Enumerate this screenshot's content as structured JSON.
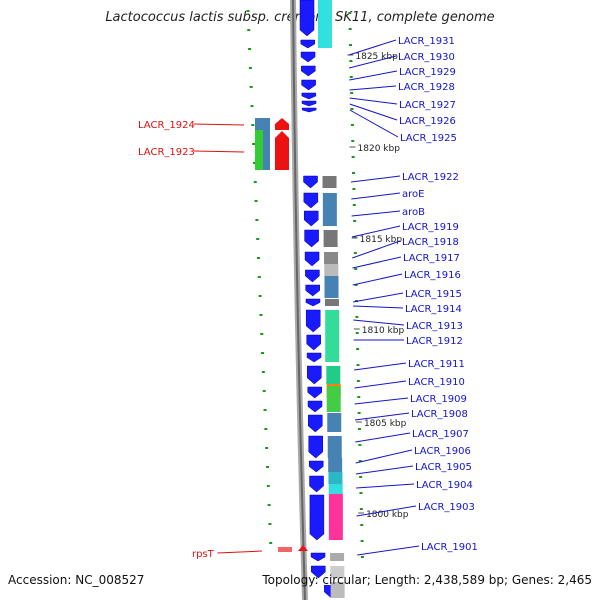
{
  "title": "Lactococcus lactis subsp. cremoris SK11, complete genome",
  "footer": {
    "accession": "Accession: NC_008527",
    "topology": "Topology: circular; Length: 2,438,589 bp; Genes: 2,465"
  },
  "colors": {
    "right_gene_label": "#1414cc",
    "left_gene_label": "#dd1111",
    "forward_arrow": "#1a1aff",
    "reverse_arrow": "#ee1111",
    "tick": "#1a9a1a",
    "backbone": "#888888"
  },
  "coordinate_labels": [
    "1825 kbp",
    "1820 kbp",
    "1815 kbp",
    "1810 kbp",
    "1805 kbp",
    "1800 kbp"
  ],
  "right_labels": [
    "LACR_1931",
    "LACR_1930",
    "LACR_1929",
    "LACR_1928",
    "LACR_1927",
    "LACR_1926",
    "LACR_1925",
    "LACR_1922",
    "aroE",
    "aroB",
    "LACR_1919",
    "LACR_1918",
    "LACR_1917",
    "LACR_1916",
    "LACR_1915",
    "LACR_1914",
    "LACR_1913",
    "LACR_1912",
    "LACR_1911",
    "LACR_1910",
    "LACR_1909",
    "LACR_1908",
    "LACR_1907",
    "LACR_1906",
    "LACR_1905",
    "LACR_1904",
    "LACR_1903",
    "LACR_1901"
  ],
  "left_labels": [
    "LACR_1924",
    "LACR_1923",
    "rpsT"
  ]
}
